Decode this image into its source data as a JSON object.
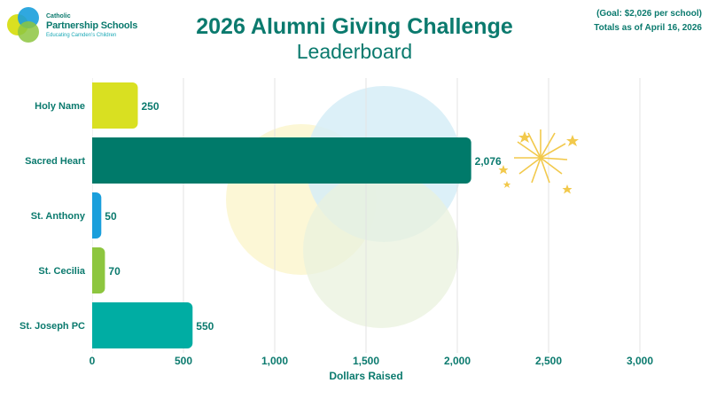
{
  "logo": {
    "line1": "Catholic",
    "line2": "Partnership Schools",
    "line3": "Educating Camden’s Children"
  },
  "header": {
    "title": "2026 Alumni Giving Challenge",
    "subtitle": "Leaderboard"
  },
  "notes": {
    "goal": "(Goal: $2,026 per school)",
    "totals_as_of": "Totals as of April 16, 2026"
  },
  "colors": {
    "brand_green": "#0b7a6e",
    "lime": "#d9e021",
    "teal_dark": "#007a6a",
    "blue": "#1a9fdc",
    "green": "#8dc63f",
    "teal": "#00ada3"
  },
  "chart_data": {
    "type": "bar",
    "orientation": "horizontal",
    "categories": [
      "Holy Name",
      "Sacred Heart",
      "St. Anthony",
      "St. Cecilia",
      "St. Joseph PC"
    ],
    "values": [
      250,
      2076,
      50,
      70,
      550
    ],
    "value_labels": [
      "250",
      "2,076",
      "50",
      "70",
      "550"
    ],
    "bar_colors": [
      "#d9e021",
      "#007a6a",
      "#1a9fdc",
      "#8dc63f",
      "#00ada3"
    ],
    "xlabel": "Dollars Raised",
    "ylabel": "",
    "xlim": [
      0,
      3000
    ],
    "xticks": [
      0,
      500,
      1000,
      1500,
      2000,
      2500,
      3000
    ],
    "xtick_labels": [
      "0",
      "500",
      "1,000",
      "1,500",
      "2,000",
      "2,500",
      "3,000"
    ],
    "grid": true
  }
}
